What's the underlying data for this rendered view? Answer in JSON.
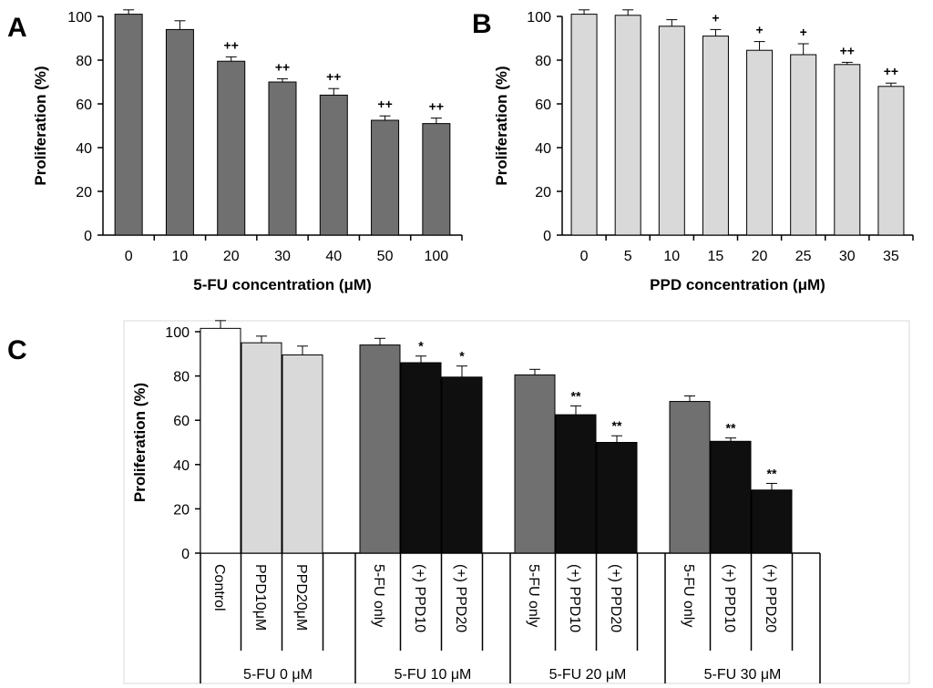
{
  "chart_data": [
    {
      "panel": "A",
      "type": "bar",
      "title": "",
      "xlabel": "5-FU concentration (μM)",
      "ylabel": "Proliferation (%)",
      "ylim": [
        0,
        100
      ],
      "yticks": [
        "0",
        "20",
        "40",
        "60",
        "80",
        "100"
      ],
      "categories": [
        "0",
        "10",
        "20",
        "30",
        "40",
        "50",
        "100"
      ],
      "values": [
        101,
        94,
        79.5,
        70,
        64,
        52.5,
        51
      ],
      "errors": [
        2,
        4,
        2,
        1.5,
        3,
        2,
        2.5
      ],
      "significance": [
        "",
        "",
        "++",
        "++",
        "++",
        "++",
        "++"
      ],
      "bar_color": "#707070"
    },
    {
      "panel": "B",
      "type": "bar",
      "title": "",
      "xlabel": "PPD concentration (μM)",
      "ylabel": "Proliferation (%)",
      "ylim": [
        0,
        100
      ],
      "yticks": [
        "0",
        "20",
        "40",
        "60",
        "80",
        "100"
      ],
      "categories": [
        "0",
        "5",
        "10",
        "15",
        "20",
        "25",
        "30",
        "35"
      ],
      "values": [
        101,
        100.5,
        95.5,
        91,
        84.5,
        82.5,
        78,
        68
      ],
      "errors": [
        2,
        2.5,
        3,
        3,
        4,
        5,
        1,
        1.5
      ],
      "significance": [
        "",
        "",
        "",
        "+",
        "+",
        "+",
        "++",
        "++"
      ],
      "bar_color": "#d9d9d9"
    },
    {
      "panel": "C",
      "type": "bar",
      "title": "",
      "xlabel": "",
      "ylabel": "Proliferation (%)",
      "ylim": [
        0,
        100
      ],
      "yticks": [
        "0",
        "20",
        "40",
        "60",
        "80",
        "100"
      ],
      "groups": [
        {
          "label": "5-FU  0 μM",
          "bars": [
            {
              "label": "Control",
              "value": 101.5,
              "error": 3.5,
              "sig": "",
              "color": "#ffffff"
            },
            {
              "label": "PPD10μM",
              "value": 95,
              "error": 3,
              "sig": "",
              "color": "#d9d9d9"
            },
            {
              "label": "PPD20μM",
              "value": 89.5,
              "error": 4,
              "sig": "",
              "color": "#d9d9d9"
            }
          ]
        },
        {
          "label": "5-FU  10 μM",
          "bars": [
            {
              "label": "5-FU only",
              "value": 94,
              "error": 3,
              "sig": "",
              "color": "#707070"
            },
            {
              "label": "(+) PPD10",
              "value": 86,
              "error": 3,
              "sig": "*",
              "color": "#0f0f0f"
            },
            {
              "label": "(+) PPD20",
              "value": 79.5,
              "error": 5,
              "sig": "*",
              "color": "#0f0f0f"
            }
          ]
        },
        {
          "label": "5-FU  20 μM",
          "bars": [
            {
              "label": "5-FU only",
              "value": 80.5,
              "error": 2.5,
              "sig": "",
              "color": "#707070"
            },
            {
              "label": "(+) PPD10",
              "value": 62.5,
              "error": 4,
              "sig": "**",
              "color": "#0f0f0f"
            },
            {
              "label": "(+) PPD20",
              "value": 50,
              "error": 3,
              "sig": "**",
              "color": "#0f0f0f"
            }
          ]
        },
        {
          "label": "5-FU  30 μM",
          "bars": [
            {
              "label": "5-FU only",
              "value": 68.5,
              "error": 2.5,
              "sig": "",
              "color": "#707070"
            },
            {
              "label": "(+) PPD10",
              "value": 50.5,
              "error": 1.5,
              "sig": "**",
              "color": "#0f0f0f"
            },
            {
              "label": "(+) PPD20",
              "value": 28.5,
              "error": 3,
              "sig": "**",
              "color": "#0f0f0f"
            }
          ]
        }
      ]
    }
  ]
}
